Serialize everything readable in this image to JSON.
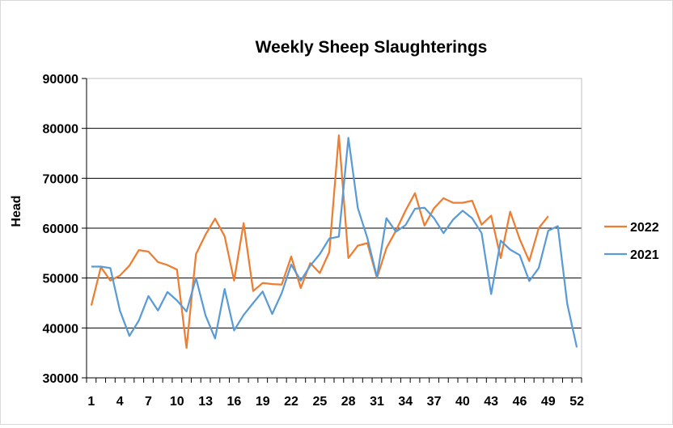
{
  "chart_data": {
    "type": "line",
    "title": "Weekly Sheep Slaughterings",
    "xlabel": "",
    "ylabel": "Head",
    "ylim": [
      30000,
      90000
    ],
    "yticks": [
      "90000",
      "80000",
      "70000",
      "60000",
      "50000",
      "40000",
      "30000"
    ],
    "xlim": [
      1,
      52
    ],
    "xtick_labels": [
      "1",
      "4",
      "7",
      "10",
      "13",
      "16",
      "19",
      "22",
      "25",
      "28",
      "31",
      "34",
      "37",
      "40",
      "43",
      "46",
      "49",
      "52"
    ],
    "grid": "horizontal",
    "legend_position": "right",
    "series": [
      {
        "name": "2022",
        "color": "#ED7D31",
        "x": [
          1,
          2,
          3,
          4,
          5,
          6,
          7,
          8,
          9,
          10,
          11,
          12,
          13,
          14,
          15,
          16,
          17,
          18,
          19,
          20,
          21,
          22,
          23,
          24,
          25,
          26,
          27,
          28,
          29,
          30,
          31,
          32,
          33,
          34,
          35,
          36,
          37,
          38,
          39,
          40,
          41,
          42,
          43,
          44,
          45,
          46,
          47,
          48,
          49
        ],
        "values": [
          44500,
          52200,
          49500,
          50500,
          52500,
          55600,
          55300,
          53200,
          52600,
          51700,
          36000,
          54800,
          58700,
          61900,
          58400,
          49500,
          61000,
          47400,
          49000,
          48800,
          48700,
          54300,
          48000,
          53000,
          51000,
          55200,
          78600,
          54000,
          56500,
          57000,
          50000,
          56000,
          59500,
          63500,
          67000,
          60500,
          64000,
          66000,
          65100,
          65100,
          65500,
          60700,
          62500,
          54000,
          63300,
          57800,
          53400,
          60000,
          62400
        ]
      },
      {
        "name": "2021",
        "color": "#5B9BD5",
        "x": [
          1,
          2,
          3,
          4,
          5,
          6,
          7,
          8,
          9,
          10,
          11,
          12,
          13,
          14,
          15,
          16,
          17,
          18,
          19,
          20,
          21,
          22,
          23,
          24,
          25,
          26,
          27,
          28,
          29,
          30,
          31,
          32,
          33,
          34,
          35,
          36,
          37,
          38,
          39,
          40,
          41,
          42,
          43,
          44,
          45,
          46,
          47,
          48,
          49,
          50,
          51,
          52
        ],
        "values": [
          52300,
          52300,
          52000,
          43500,
          38400,
          41500,
          46400,
          43500,
          47200,
          45500,
          43300,
          50000,
          42500,
          37900,
          47800,
          39500,
          42600,
          45000,
          47300,
          42800,
          47000,
          52700,
          49500,
          52500,
          54800,
          57900,
          58300,
          78100,
          64000,
          58000,
          50200,
          62000,
          59300,
          60600,
          63900,
          64100,
          62000,
          59000,
          61700,
          63500,
          62000,
          59000,
          46800,
          57500,
          55700,
          54600,
          49400,
          52000,
          59500,
          60400,
          44800,
          36100
        ]
      }
    ]
  }
}
